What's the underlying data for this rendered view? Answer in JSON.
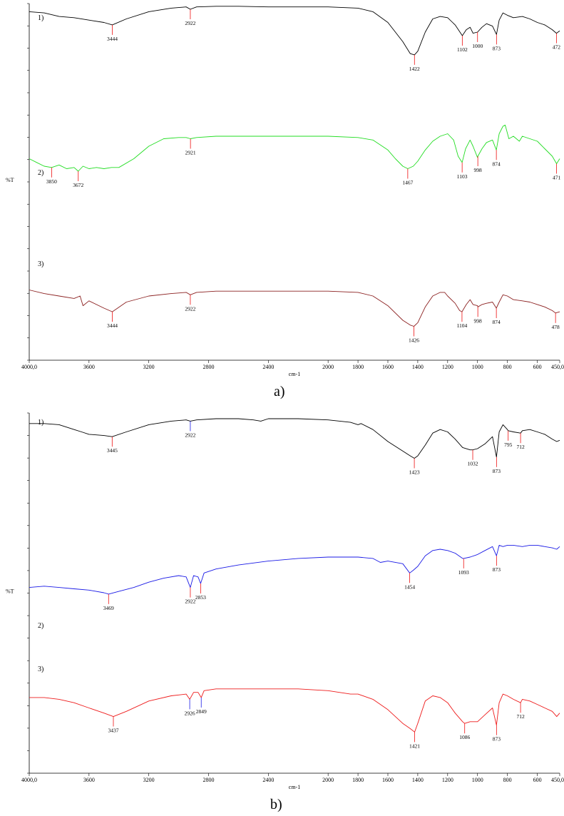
{
  "captions": {
    "a": "a)",
    "b": "b)"
  },
  "chart_data": [
    {
      "type": "line",
      "panel": "a",
      "xlabel": "cm-1",
      "ylabel": "%T",
      "xlim": [
        4000,
        450
      ],
      "x_ticks": [
        "4000,0",
        "3600",
        "3200",
        "2800",
        "2400",
        "2000",
        "1600",
        "1200",
        "800",
        "600",
        "450,0"
      ],
      "x_tick_values": [
        4000,
        3600,
        3200,
        2800,
        2400,
        2000,
        1600,
        1200,
        800,
        600,
        450
      ],
      "extra_ticks": [
        {
          "label": "1800",
          "value": 1800
        },
        {
          "label": "1400",
          "value": 1400
        },
        {
          "label": "1000",
          "value": 1000
        }
      ],
      "ylim": [
        0,
        100
      ],
      "series": [
        {
          "name": "1)",
          "color": "#000000",
          "x": [
            4000,
            3900,
            3800,
            3700,
            3600,
            3500,
            3444,
            3350,
            3200,
            3050,
            2950,
            2922,
            2880,
            2750,
            2600,
            2400,
            2200,
            2000,
            1800,
            1700,
            1600,
            1500,
            1450,
            1422,
            1400,
            1350,
            1300,
            1250,
            1200,
            1150,
            1102,
            1075,
            1050,
            1030,
            1000,
            970,
            940,
            900,
            873,
            855,
            830,
            800,
            760,
            700,
            650,
            600,
            550,
            500,
            472,
            450
          ],
          "y": [
            95,
            94,
            91,
            90,
            88,
            86,
            84,
            89,
            95,
            98,
            99,
            97,
            99,
            99.5,
            99.5,
            99,
            99,
            99,
            98,
            95,
            86,
            70,
            60,
            59,
            62,
            78,
            89,
            91,
            90,
            84,
            75,
            80,
            82,
            77,
            78,
            82,
            85,
            83,
            76,
            88,
            94,
            92,
            90,
            91,
            89,
            86,
            84,
            80,
            77,
            79
          ],
          "peaks": [
            {
              "label": "3444",
              "x": 3444
            },
            {
              "label": "2922",
              "x": 2922
            },
            {
              "label": "1422",
              "x": 1422
            },
            {
              "label": "1102",
              "x": 1102
            },
            {
              "label": "1000",
              "x": 1000
            },
            {
              "label": "873",
              "x": 873
            },
            {
              "label": "472",
              "x": 472
            }
          ]
        },
        {
          "name": "2)",
          "color": "#22dd22",
          "x": [
            4000,
            3950,
            3900,
            3850,
            3800,
            3750,
            3700,
            3672,
            3640,
            3600,
            3550,
            3500,
            3450,
            3400,
            3300,
            3200,
            3100,
            3000,
            2950,
            2921,
            2880,
            2750,
            2600,
            2400,
            2200,
            2000,
            1800,
            1700,
            1600,
            1550,
            1500,
            1467,
            1430,
            1400,
            1350,
            1300,
            1250,
            1200,
            1160,
            1130,
            1103,
            1080,
            1050,
            1030,
            1000,
            998,
            970,
            940,
            900,
            874,
            855,
            830,
            815,
            790,
            760,
            720,
            700,
            650,
            600,
            550,
            500,
            471,
            450
          ],
          "y": [
            70,
            67,
            64,
            63,
            65,
            62,
            63,
            60,
            64,
            62,
            63,
            62,
            63,
            63,
            70,
            80,
            86,
            87,
            87,
            86,
            87,
            88,
            88,
            88,
            88,
            88,
            87,
            85,
            77,
            70,
            64,
            62,
            64,
            68,
            77,
            84,
            88,
            90,
            85,
            72,
            67,
            78,
            85,
            80,
            71,
            72,
            78,
            83,
            85,
            77,
            90,
            96,
            97,
            86,
            88,
            84,
            88,
            86,
            84,
            78,
            72,
            66,
            70
          ],
          "peaks": [
            {
              "label": "3850",
              "x": 3850
            },
            {
              "label": "3672",
              "x": 3672
            },
            {
              "label": "2921",
              "x": 2921
            },
            {
              "label": "1467",
              "x": 1467
            },
            {
              "label": "1103",
              "x": 1103
            },
            {
              "label": "998",
              "x": 998
            },
            {
              "label": "874",
              "x": 874
            },
            {
              "label": "471",
              "x": 471
            }
          ]
        },
        {
          "name": "3)",
          "color": "#8b2020",
          "x": [
            4000,
            3900,
            3800,
            3700,
            3660,
            3640,
            3600,
            3500,
            3444,
            3350,
            3200,
            3050,
            2950,
            2922,
            2880,
            2750,
            2600,
            2400,
            2200,
            2000,
            1800,
            1700,
            1600,
            1500,
            1450,
            1426,
            1400,
            1350,
            1300,
            1250,
            1220,
            1200,
            1150,
            1120,
            1104,
            1075,
            1050,
            1030,
            1000,
            998,
            970,
            940,
            900,
            874,
            855,
            830,
            800,
            760,
            700,
            650,
            600,
            550,
            500,
            478,
            450
          ],
          "y": [
            55,
            52,
            50,
            48,
            50,
            42,
            46,
            40,
            37,
            45,
            50,
            52,
            53,
            51,
            53,
            54,
            54,
            54,
            54,
            54,
            53,
            50,
            42,
            30,
            26,
            25,
            28,
            41,
            50,
            53,
            53,
            50,
            44,
            38,
            37,
            43,
            47,
            43,
            42,
            41,
            43,
            44,
            45,
            40,
            45,
            51,
            50,
            47,
            46,
            45,
            43,
            41,
            38,
            36,
            37
          ],
          "peaks": [
            {
              "label": "3444",
              "x": 3444
            },
            {
              "label": "2922",
              "x": 2922
            },
            {
              "label": "1426",
              "x": 1426
            },
            {
              "label": "1104",
              "x": 1104
            },
            {
              "label": "998",
              "x": 998
            },
            {
              "label": "874",
              "x": 874
            },
            {
              "label": "478",
              "x": 478
            }
          ]
        }
      ]
    },
    {
      "type": "line",
      "panel": "b",
      "xlabel": "cm-1",
      "ylabel": "%T",
      "xlim": [
        4000,
        450
      ],
      "x_ticks": [
        "4000,0",
        "3600",
        "3200",
        "2800",
        "2400",
        "2000",
        "1600",
        "1200",
        "800",
        "600",
        "450,0"
      ],
      "x_tick_values": [
        4000,
        3600,
        3200,
        2800,
        2400,
        2000,
        1600,
        1200,
        800,
        600,
        450
      ],
      "extra_ticks": [
        {
          "label": "1800",
          "value": 1800
        },
        {
          "label": "1400",
          "value": 1400
        },
        {
          "label": "1000",
          "value": 1000
        }
      ],
      "ylim": [
        0,
        100
      ],
      "series": [
        {
          "name": "1)",
          "color": "#000000",
          "x": [
            4000,
            3900,
            3800,
            3700,
            3650,
            3600,
            3500,
            3445,
            3350,
            3200,
            3050,
            2950,
            2922,
            2880,
            2750,
            2600,
            2500,
            2450,
            2400,
            2200,
            2000,
            1850,
            1800,
            1780,
            1700,
            1600,
            1500,
            1450,
            1423,
            1400,
            1350,
            1300,
            1250,
            1200,
            1150,
            1100,
            1050,
            1032,
            1000,
            950,
            900,
            873,
            855,
            830,
            800,
            795,
            760,
            712,
            700,
            650,
            600,
            550,
            500,
            470,
            450
          ],
          "y": [
            93,
            93,
            92,
            88,
            86,
            84,
            83,
            82,
            86,
            92,
            95,
            96,
            95,
            96,
            97,
            97,
            96,
            95,
            97,
            97,
            96,
            94,
            92,
            93,
            88,
            78,
            70,
            66,
            64,
            66,
            75,
            85,
            88,
            86,
            80,
            73,
            71,
            71,
            72,
            76,
            82,
            65,
            86,
            92,
            88,
            87,
            86,
            85,
            87,
            88,
            86,
            84,
            80,
            78,
            79
          ],
          "peaks": [
            {
              "label": "3445",
              "x": 3445
            },
            {
              "label": "2922",
              "x": 2922
            },
            {
              "label": "1423",
              "x": 1423
            },
            {
              "label": "1032",
              "x": 1032
            },
            {
              "label": "873",
              "x": 873
            },
            {
              "label": "795",
              "x": 795
            },
            {
              "label": "712",
              "x": 712
            }
          ]
        },
        {
          "name": "2)",
          "color": "#1a1ae6",
          "x": [
            4000,
            3900,
            3800,
            3700,
            3600,
            3500,
            3469,
            3400,
            3300,
            3200,
            3100,
            3000,
            2950,
            2922,
            2900,
            2870,
            2853,
            2830,
            2750,
            2600,
            2400,
            2200,
            2000,
            1800,
            1700,
            1650,
            1600,
            1500,
            1454,
            1430,
            1400,
            1350,
            1300,
            1250,
            1200,
            1150,
            1100,
            1093,
            1050,
            1000,
            950,
            900,
            873,
            855,
            830,
            800,
            760,
            700,
            650,
            600,
            550,
            500,
            470,
            450
          ],
          "y": [
            44,
            45,
            44,
            43,
            42,
            40,
            39,
            41,
            44,
            48,
            51,
            53,
            52,
            44,
            53,
            52,
            47,
            55,
            58,
            61,
            64,
            66,
            67,
            67,
            66,
            63,
            64,
            62,
            55,
            57,
            60,
            68,
            72,
            73,
            72,
            70,
            66,
            66,
            67,
            69,
            72,
            75,
            68,
            76,
            75,
            76,
            76,
            75,
            76,
            76,
            75,
            74,
            73,
            75
          ],
          "peaks": [
            {
              "label": "3469",
              "x": 3469
            },
            {
              "label": "2922",
              "x": 2922
            },
            {
              "label": "2853",
              "x": 2853
            },
            {
              "label": "1454",
              "x": 1454
            },
            {
              "label": "1093",
              "x": 1093
            },
            {
              "label": "873",
              "x": 873
            }
          ]
        },
        {
          "name": "3)",
          "color": "#ee1c1c",
          "x": [
            4000,
            3900,
            3800,
            3700,
            3600,
            3500,
            3437,
            3350,
            3200,
            3050,
            2950,
            2926,
            2900,
            2870,
            2849,
            2830,
            2750,
            2600,
            2400,
            2200,
            2000,
            1850,
            1800,
            1700,
            1600,
            1500,
            1450,
            1421,
            1400,
            1350,
            1300,
            1250,
            1200,
            1150,
            1100,
            1086,
            1050,
            1000,
            950,
            900,
            873,
            855,
            830,
            800,
            760,
            712,
            700,
            650,
            600,
            550,
            500,
            470,
            450
          ],
          "y": [
            43,
            43,
            42,
            40,
            37,
            34,
            32,
            35,
            41,
            44,
            45,
            42,
            46,
            46,
            43,
            47,
            48,
            48,
            48,
            48,
            47,
            45,
            45,
            42,
            36,
            28,
            25,
            23,
            28,
            41,
            44,
            43,
            40,
            34,
            29,
            28,
            29,
            29,
            33,
            37,
            27,
            40,
            45,
            44,
            42,
            40,
            42,
            41,
            39,
            37,
            35,
            32,
            34
          ],
          "peaks": [
            {
              "label": "3437",
              "x": 3437
            },
            {
              "label": "2926",
              "x": 2926
            },
            {
              "label": "2849",
              "x": 2849
            },
            {
              "label": "1421",
              "x": 1421
            },
            {
              "label": "1086",
              "x": 1086
            },
            {
              "label": "873",
              "x": 873
            },
            {
              "label": "712",
              "x": 712
            }
          ]
        }
      ]
    }
  ]
}
